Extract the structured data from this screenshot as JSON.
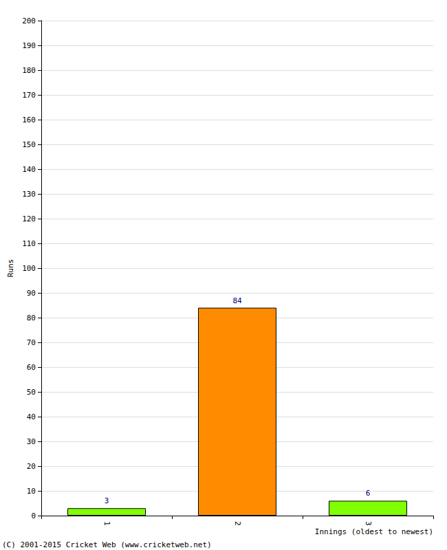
{
  "chart_data": {
    "type": "bar",
    "categories": [
      "1",
      "2",
      "3"
    ],
    "values": [
      3,
      84,
      6
    ],
    "colors": [
      "#80ff00",
      "#ff8c00",
      "#80ff00"
    ],
    "xlabel": "Innings (oldest to newest)",
    "ylabel": "Runs",
    "ylim": [
      0,
      200
    ],
    "yticks": [
      0,
      10,
      20,
      30,
      40,
      50,
      60,
      70,
      80,
      90,
      100,
      110,
      120,
      130,
      140,
      150,
      160,
      170,
      180,
      190,
      200
    ],
    "grid": true,
    "data_labels": true,
    "annotations": [
      "(C) 2001-2015 Cricket Web (www.cricketweb.net)"
    ]
  }
}
